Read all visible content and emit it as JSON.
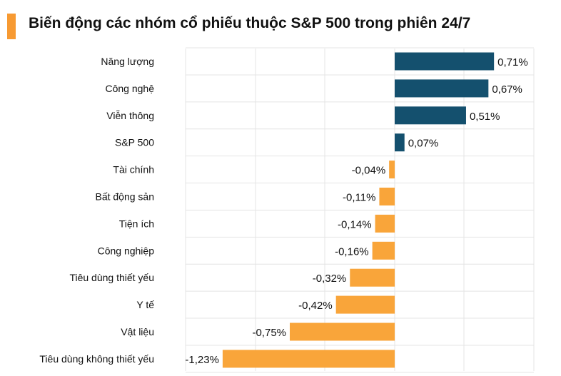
{
  "chart_data": {
    "type": "bar",
    "orientation": "horizontal",
    "title": "Biến động các nhóm cổ phiếu thuộc S&P 500 trong phiên 24/7",
    "categories": [
      "Năng lượng",
      "Công nghệ",
      "Viễn thông",
      "S&P 500",
      "Tài chính",
      "Bất động sản",
      "Tiện ích",
      "Công nghiệp",
      "Tiêu dùng thiết yếu",
      "Y tế",
      "Vật liệu",
      "Tiêu dùng không thiết yếu"
    ],
    "values": [
      0.71,
      0.67,
      0.51,
      0.07,
      -0.04,
      -0.11,
      -0.14,
      -0.16,
      -0.32,
      -0.42,
      -0.75,
      -1.23
    ],
    "data_labels": [
      "0,71%",
      "0,67%",
      "0,51%",
      "0,07%",
      "-0,04%",
      "-0,11%",
      "-0,14%",
      "-0,16%",
      "-0,32%",
      "-0,42%",
      "-0,75%",
      "-1,23%"
    ],
    "xlim": [
      -1.23,
      0.71
    ],
    "grid": true,
    "colors": {
      "positive": "#14506e",
      "negative": "#f9a53a",
      "accent": "#f79a32",
      "grid": "#e4e4e4"
    }
  }
}
